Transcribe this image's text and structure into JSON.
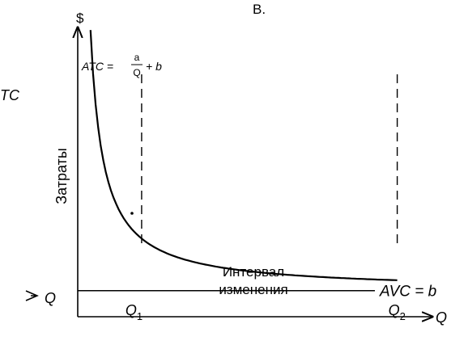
{
  "panel_label": "B.",
  "left_labels": {
    "tc": "TC",
    "q_left": "Q"
  },
  "chart_data": {
    "type": "line",
    "title": "",
    "ylabel": "Затраты",
    "y_unit": "$",
    "xlabel": "Q",
    "annotation": "Интервал изменения",
    "x_ticks": [
      {
        "name": "Q",
        "sub": "1"
      },
      {
        "name": "Q",
        "sub": "2"
      }
    ],
    "series": [
      {
        "formula": {
          "lhs": "ATC",
          "num": "a",
          "den": "Q",
          "rest": "+ b"
        },
        "kind": "hyperbola",
        "a": 2,
        "b": 1,
        "x": [
          0.2,
          0.3,
          0.4,
          0.5,
          0.7,
          1,
          1.3,
          1.7,
          2,
          2.4,
          3,
          3.6,
          4.2,
          5
        ],
        "y": [
          11,
          7.667,
          6,
          5,
          3.857,
          3,
          2.538,
          2.176,
          2,
          1.833,
          1.667,
          1.556,
          1.476,
          1.4
        ]
      },
      {
        "label": "AVC = b",
        "kind": "horizontal",
        "value": 1
      }
    ],
    "q1": 1,
    "q2": 5,
    "xlim": [
      0,
      5.55
    ],
    "ylim": [
      0,
      11.1
    ],
    "grid": false
  }
}
